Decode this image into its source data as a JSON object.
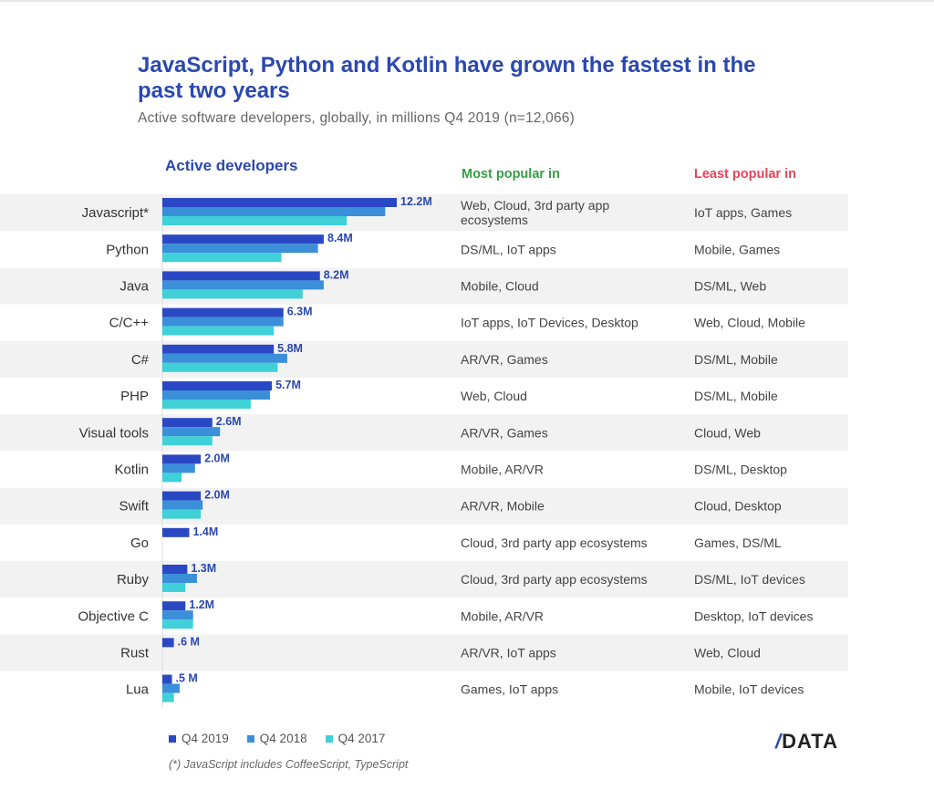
{
  "header": {
    "title": "JavaScript, Python and Kotlin have grown the fastest in the past two years",
    "subtitle": "Active software developers, globally, in millions Q4 2019 (n=12,066)"
  },
  "columns": {
    "active": "Active developers",
    "most": "Most popular in",
    "least": "Least popular in"
  },
  "colors": {
    "q2019": "#2b48c4",
    "q2018": "#3b8fd9",
    "q2017": "#3fd0d8",
    "stripe": "#f2f2f2",
    "label": "#2b48b0"
  },
  "chart_data": {
    "type": "bar",
    "orientation": "horizontal",
    "title": "Active developers",
    "unit": "millions",
    "categories": [
      "Javascript*",
      "Python",
      "Java",
      "C/C++",
      "C#",
      "PHP",
      "Visual tools",
      "Kotlin",
      "Swift",
      "Go",
      "Ruby",
      "Objective C",
      "Rust",
      "Lua"
    ],
    "series": [
      {
        "name": "Q4 2019",
        "values": [
          12.2,
          8.4,
          8.2,
          6.3,
          5.8,
          5.7,
          2.6,
          2.0,
          2.0,
          1.4,
          1.3,
          1.2,
          0.6,
          0.5
        ]
      },
      {
        "name": "Q4 2018",
        "values": [
          11.6,
          8.1,
          8.4,
          6.3,
          6.5,
          5.6,
          3.0,
          1.7,
          2.1,
          0.0,
          1.8,
          1.6,
          0.0,
          0.9
        ]
      },
      {
        "name": "Q4 2017",
        "values": [
          9.6,
          6.2,
          7.3,
          5.8,
          6.0,
          4.6,
          2.6,
          1.0,
          2.0,
          0.0,
          1.2,
          1.6,
          0.0,
          0.6
        ]
      }
    ],
    "value_labels": [
      "12.2M",
      "8.4M",
      "8.2M",
      "6.3M",
      "5.8M",
      "5.7M",
      "2.6M",
      "2.0M",
      "2.0M",
      "1.4M",
      "1.3M",
      "1.2M",
      ".6 M",
      ".5 M"
    ],
    "most_popular_in": [
      "Web, Cloud, 3rd party app ecosystems",
      "DS/ML, IoT apps",
      "Mobile, Cloud",
      "IoT apps, IoT Devices, Desktop",
      "AR/VR, Games",
      "Web, Cloud",
      "AR/VR, Games",
      "Mobile, AR/VR",
      "AR/VR, Mobile",
      "Cloud, 3rd party app ecosystems",
      "Cloud, 3rd party app ecosystems",
      "Mobile, AR/VR",
      "AR/VR, IoT apps",
      "Games, IoT apps"
    ],
    "least_popular_in": [
      "IoT apps, Games",
      "Mobile, Games",
      "DS/ML, Web",
      "Web, Cloud, Mobile",
      "DS/ML, Mobile",
      "DS/ML, Mobile",
      "Cloud, Web",
      "DS/ML, Desktop",
      "Cloud, Desktop",
      "Games, DS/ML",
      "DS/ML, IoT devices",
      "Desktop, IoT devices",
      "Web, Cloud",
      "Mobile, IoT devices"
    ],
    "xlim": [
      0,
      12.2
    ]
  },
  "legend": {
    "q2019": "Q4 2019",
    "q2018": "Q4 2018",
    "q2017": "Q4 2017"
  },
  "footnote": "(*) JavaScript includes CoffeeScript, TypeScript",
  "logo": {
    "slash": "/",
    "text": "DATA"
  }
}
